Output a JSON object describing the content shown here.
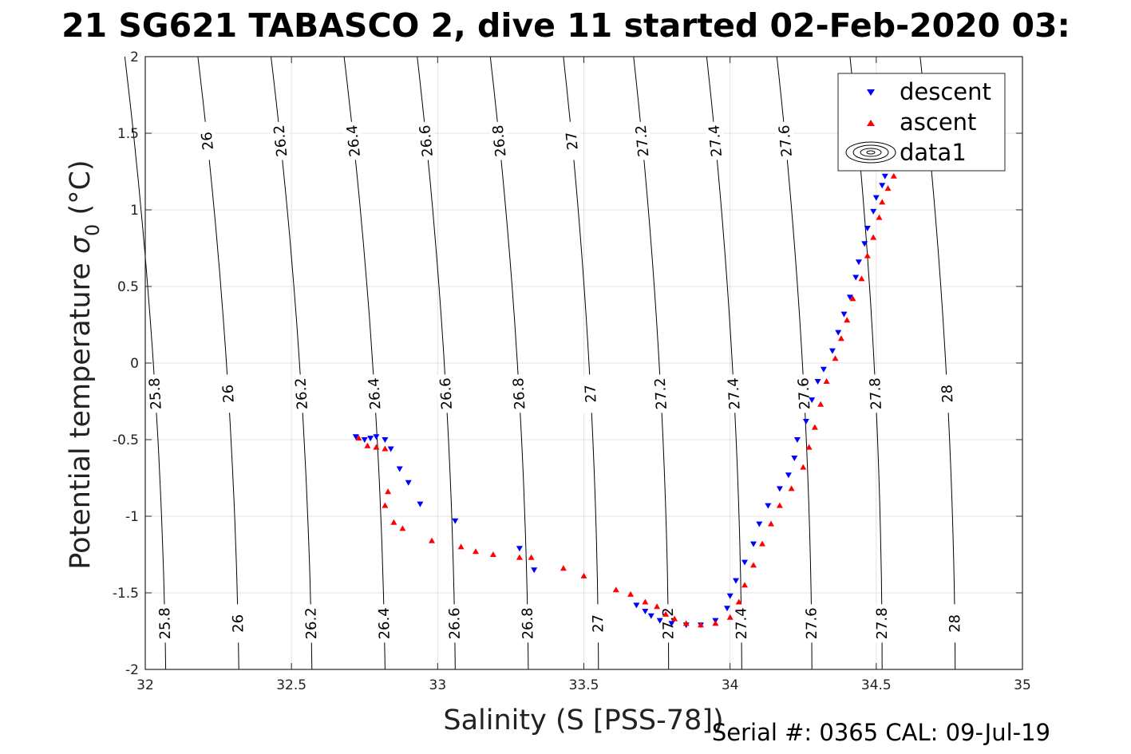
{
  "chart_data": {
    "type": "scatter",
    "title": "21 SG621 TABASCO 2, dive 11 started 02-Feb-2020 03:",
    "xlabel": "Salinity (S [PSS-78])",
    "ylabel_main": "Potential temperature ",
    "ylabel_sigma": "σ",
    "ylabel_sub": "0",
    "ylabel_unit": " (°C)",
    "xlim": [
      32,
      35
    ],
    "ylim": [
      -2,
      2
    ],
    "x_ticks": [
      "32",
      "32.5",
      "33",
      "33.5",
      "34",
      "34.5",
      "35"
    ],
    "y_ticks": [
      "-2",
      "-1.5",
      "-1",
      "-0.5",
      "0",
      "0.5",
      "1",
      "1.5",
      "2"
    ],
    "grid": true,
    "legend_position": "top-right",
    "legend": [
      "descent",
      "ascent",
      "data1"
    ],
    "footer": "Serial #: 0365  CAL: 09-Jul-19",
    "contours": [
      {
        "label": "25.8",
        "x_bottom": 32.07,
        "x_top": 32.04
      },
      {
        "label": "26",
        "x_bottom": 32.32,
        "x_top": 32.29
      },
      {
        "label": "26.2",
        "x_bottom": 32.57,
        "x_top": 32.54
      },
      {
        "label": "26.4",
        "x_bottom": 32.82,
        "x_top": 32.79
      },
      {
        "label": "26.6",
        "x_bottom": 33.06,
        "x_top": 33.04
      },
      {
        "label": "26.8",
        "x_bottom": 33.31,
        "x_top": 33.29
      },
      {
        "label": "27",
        "x_bottom": 33.55,
        "x_top": 33.54
      },
      {
        "label": "27.2",
        "x_bottom": 33.79,
        "x_top": 33.78
      },
      {
        "label": "27.4",
        "x_bottom": 34.04,
        "x_top": 34.03
      },
      {
        "label": "27.6",
        "x_bottom": 34.28,
        "x_top": 34.27
      },
      {
        "label": "27.8",
        "x_bottom": 34.52,
        "x_top": 34.52
      },
      {
        "label": "28",
        "x_bottom": 34.77,
        "x_top": 34.76
      }
    ],
    "series": [
      {
        "name": "descent",
        "color": "#0000ff",
        "marker": "triangle-down",
        "points": [
          [
            32.72,
            -0.48
          ],
          [
            32.75,
            -0.5
          ],
          [
            32.77,
            -0.49
          ],
          [
            32.79,
            -0.48
          ],
          [
            32.82,
            -0.5
          ],
          [
            32.84,
            -0.56
          ],
          [
            32.87,
            -0.69
          ],
          [
            32.9,
            -0.78
          ],
          [
            32.94,
            -0.92
          ],
          [
            33.06,
            -1.03
          ],
          [
            33.28,
            -1.21
          ],
          [
            33.33,
            -1.35
          ],
          [
            33.68,
            -1.58
          ],
          [
            33.71,
            -1.62
          ],
          [
            33.73,
            -1.65
          ],
          [
            33.76,
            -1.68
          ],
          [
            33.8,
            -1.7
          ],
          [
            33.85,
            -1.71
          ],
          [
            33.9,
            -1.71
          ],
          [
            33.95,
            -1.68
          ],
          [
            33.99,
            -1.6
          ],
          [
            34.0,
            -1.52
          ],
          [
            34.02,
            -1.42
          ],
          [
            34.05,
            -1.3
          ],
          [
            34.08,
            -1.18
          ],
          [
            34.1,
            -1.05
          ],
          [
            34.13,
            -0.93
          ],
          [
            34.17,
            -0.82
          ],
          [
            34.2,
            -0.73
          ],
          [
            34.22,
            -0.62
          ],
          [
            34.23,
            -0.5
          ],
          [
            34.26,
            -0.38
          ],
          [
            34.28,
            -0.24
          ],
          [
            34.3,
            -0.12
          ],
          [
            34.32,
            -0.04
          ],
          [
            34.35,
            0.08
          ],
          [
            34.37,
            0.2
          ],
          [
            34.39,
            0.32
          ],
          [
            34.41,
            0.43
          ],
          [
            34.43,
            0.56
          ],
          [
            34.44,
            0.66
          ],
          [
            34.46,
            0.78
          ],
          [
            34.47,
            0.88
          ],
          [
            34.49,
            0.99
          ],
          [
            34.5,
            1.08
          ],
          [
            34.52,
            1.16
          ],
          [
            34.53,
            1.22
          ]
        ]
      },
      {
        "name": "ascent",
        "color": "#ff0000",
        "marker": "triangle-up",
        "points": [
          [
            32.73,
            -0.49
          ],
          [
            32.76,
            -0.54
          ],
          [
            32.79,
            -0.55
          ],
          [
            32.82,
            -0.56
          ],
          [
            32.83,
            -0.84
          ],
          [
            32.82,
            -0.93
          ],
          [
            32.85,
            -1.04
          ],
          [
            32.88,
            -1.08
          ],
          [
            32.98,
            -1.16
          ],
          [
            33.08,
            -1.2
          ],
          [
            33.13,
            -1.23
          ],
          [
            33.19,
            -1.25
          ],
          [
            33.28,
            -1.27
          ],
          [
            33.32,
            -1.27
          ],
          [
            33.43,
            -1.34
          ],
          [
            33.5,
            -1.39
          ],
          [
            33.61,
            -1.48
          ],
          [
            33.66,
            -1.51
          ],
          [
            33.71,
            -1.56
          ],
          [
            33.75,
            -1.59
          ],
          [
            33.78,
            -1.64
          ],
          [
            33.81,
            -1.67
          ],
          [
            33.85,
            -1.7
          ],
          [
            33.9,
            -1.71
          ],
          [
            33.95,
            -1.7
          ],
          [
            34.0,
            -1.66
          ],
          [
            34.03,
            -1.56
          ],
          [
            34.05,
            -1.45
          ],
          [
            34.08,
            -1.32
          ],
          [
            34.11,
            -1.18
          ],
          [
            34.14,
            -1.05
          ],
          [
            34.17,
            -0.93
          ],
          [
            34.21,
            -0.82
          ],
          [
            34.25,
            -0.68
          ],
          [
            34.27,
            -0.55
          ],
          [
            34.29,
            -0.42
          ],
          [
            34.31,
            -0.27
          ],
          [
            34.33,
            -0.12
          ],
          [
            34.36,
            0.03
          ],
          [
            34.38,
            0.16
          ],
          [
            34.4,
            0.28
          ],
          [
            34.42,
            0.42
          ],
          [
            34.45,
            0.55
          ],
          [
            34.47,
            0.7
          ],
          [
            34.49,
            0.82
          ],
          [
            34.51,
            0.95
          ],
          [
            34.52,
            1.05
          ],
          [
            34.54,
            1.14
          ],
          [
            34.56,
            1.22
          ],
          [
            34.58,
            1.28
          ]
        ]
      }
    ]
  }
}
